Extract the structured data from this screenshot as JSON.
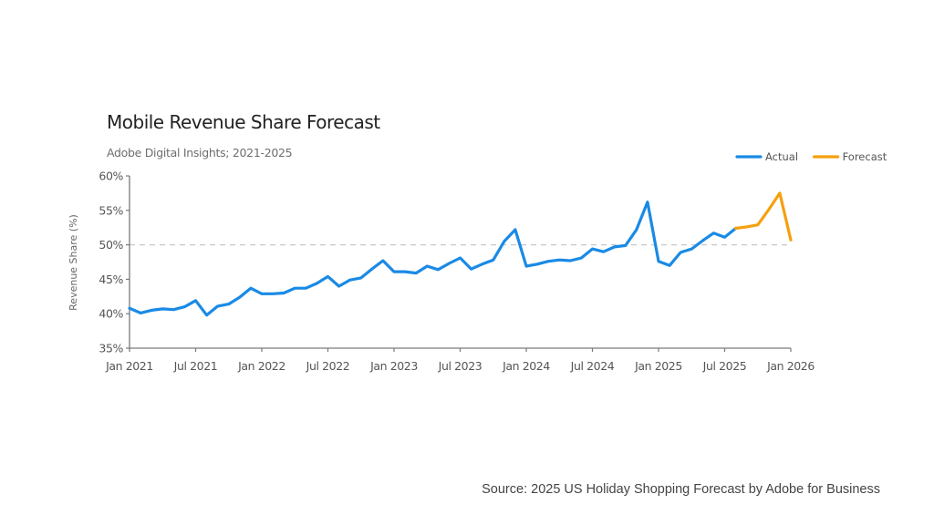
{
  "source_text": "Source: 2025 US Holiday Shopping Forecast by Adobe for Business",
  "chart_data": {
    "type": "line",
    "title": "Mobile Revenue Share Forecast",
    "subtitle": "Adobe Digital Insights; 2021-2025",
    "xlabel": "",
    "ylabel": "Revenue Share (%)",
    "ylim": [
      35,
      60
    ],
    "yticks": [
      35,
      40,
      45,
      50,
      55,
      60
    ],
    "ytick_labels": [
      "35%",
      "40%",
      "45%",
      "50%",
      "55%",
      "60%"
    ],
    "xlim_months": [
      0,
      60
    ],
    "xticks_months": [
      0,
      6,
      12,
      18,
      24,
      30,
      36,
      42,
      48,
      54,
      60
    ],
    "xtick_labels": [
      "Jan 2021",
      "Jul 2021",
      "Jan 2022",
      "Jul 2022",
      "Jan 2023",
      "Jul 2023",
      "Jan 2024",
      "Jul 2024",
      "Jan 2025",
      "Jul 2025",
      "Jan 2026"
    ],
    "reference_line": {
      "value": 50,
      "style": "dashed"
    },
    "grid": false,
    "legend_position": "top-right",
    "series": [
      {
        "name": "Actual",
        "color": "#1a8ae5",
        "start_month": 0,
        "values": [
          40.8,
          40.1,
          40.5,
          40.7,
          40.6,
          41.0,
          41.9,
          39.8,
          41.1,
          41.4,
          42.4,
          43.7,
          42.9,
          42.9,
          43.0,
          43.7,
          43.7,
          44.4,
          45.4,
          44.0,
          44.9,
          45.2,
          46.5,
          47.7,
          46.1,
          46.1,
          45.9,
          46.9,
          46.4,
          47.3,
          48.1,
          46.5,
          47.2,
          47.8,
          50.5,
          52.2,
          46.9,
          47.2,
          47.6,
          47.8,
          47.7,
          48.1,
          49.4,
          49.0,
          49.7,
          49.9,
          52.2,
          56.2,
          47.6,
          47.0,
          48.9,
          49.4,
          50.6,
          51.7,
          51.1,
          52.4
        ]
      },
      {
        "name": "Forecast",
        "color": "#f5a00f",
        "start_month": 55,
        "values": [
          52.4,
          52.6,
          52.9,
          55.1,
          57.5,
          50.7
        ]
      }
    ]
  }
}
